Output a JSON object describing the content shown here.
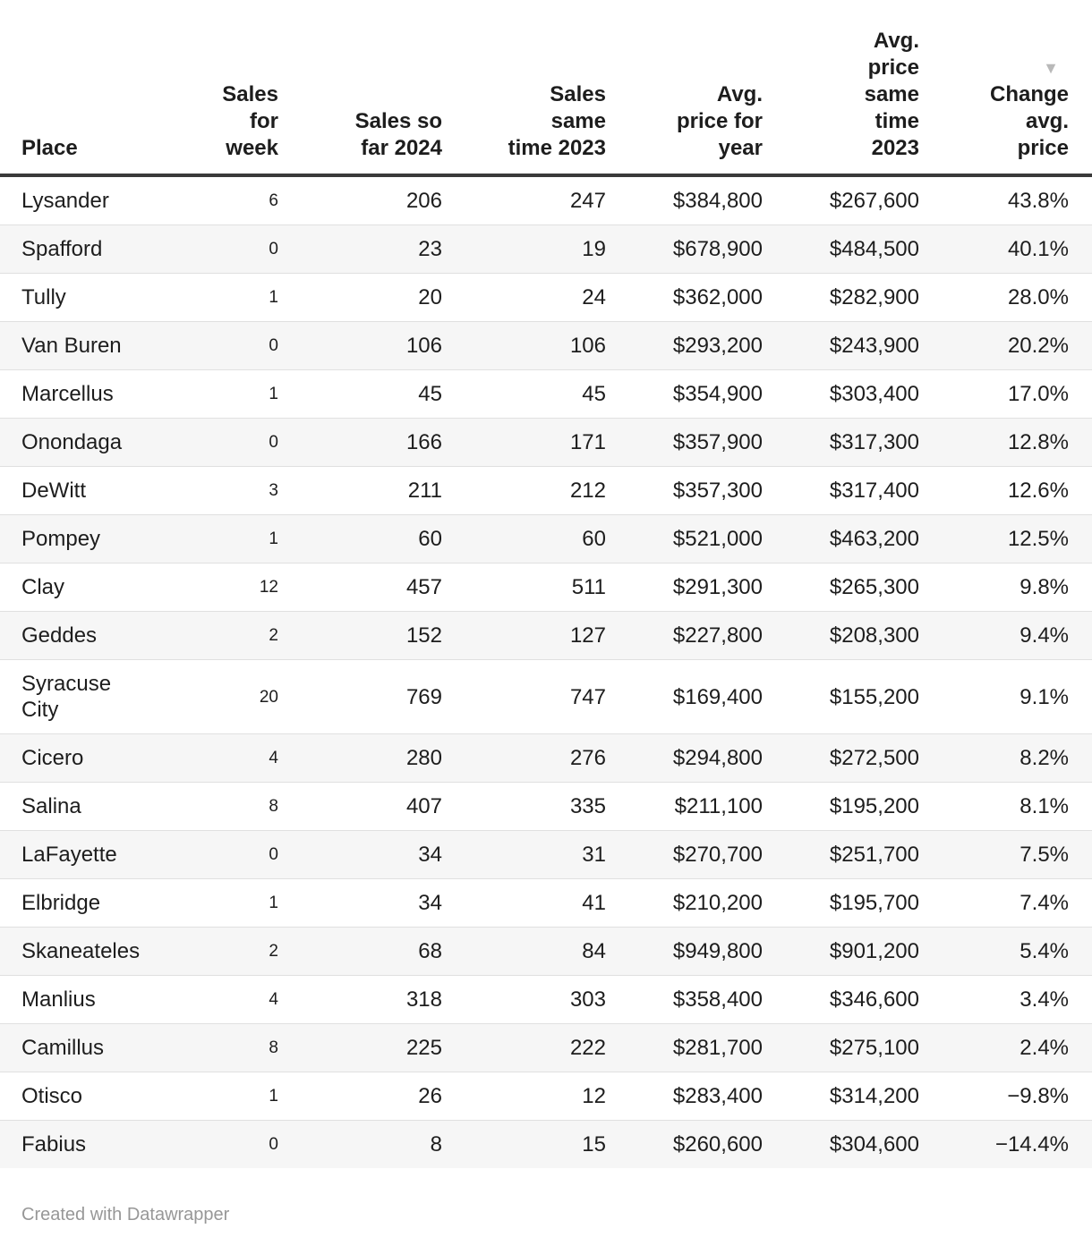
{
  "chart_data": {
    "type": "table",
    "columns": [
      {
        "name": "Place",
        "label": "Place"
      },
      {
        "name": "Sales for week",
        "label": "Sales\nfor\nweek"
      },
      {
        "name": "Sales so far 2024",
        "label": "Sales so\nfar 2024"
      },
      {
        "name": "Sales same time 2023",
        "label": "Sales\nsame\ntime 2023"
      },
      {
        "name": "Avg. price for year",
        "label": "Avg.\nprice for\nyear"
      },
      {
        "name": "Avg. price same time 2023",
        "label": "Avg.\nprice\nsame\ntime\n2023"
      },
      {
        "name": "Change avg. price",
        "label": "Change\navg.\nprice"
      }
    ],
    "sort": {
      "column": "Change avg. price",
      "direction": "desc",
      "indicator": "▼"
    },
    "rows": [
      [
        "Lysander",
        "6",
        "206",
        "247",
        "$384,800",
        "$267,600",
        "43.8%"
      ],
      [
        "Spafford",
        "0",
        "23",
        "19",
        "$678,900",
        "$484,500",
        "40.1%"
      ],
      [
        "Tully",
        "1",
        "20",
        "24",
        "$362,000",
        "$282,900",
        "28.0%"
      ],
      [
        "Van Buren",
        "0",
        "106",
        "106",
        "$293,200",
        "$243,900",
        "20.2%"
      ],
      [
        "Marcellus",
        "1",
        "45",
        "45",
        "$354,900",
        "$303,400",
        "17.0%"
      ],
      [
        "Onondaga",
        "0",
        "166",
        "171",
        "$357,900",
        "$317,300",
        "12.8%"
      ],
      [
        "DeWitt",
        "3",
        "211",
        "212",
        "$357,300",
        "$317,400",
        "12.6%"
      ],
      [
        "Pompey",
        "1",
        "60",
        "60",
        "$521,000",
        "$463,200",
        "12.5%"
      ],
      [
        "Clay",
        "12",
        "457",
        "511",
        "$291,300",
        "$265,300",
        "9.8%"
      ],
      [
        "Geddes",
        "2",
        "152",
        "127",
        "$227,800",
        "$208,300",
        "9.4%"
      ],
      [
        "Syracuse City",
        "20",
        "769",
        "747",
        "$169,400",
        "$155,200",
        "9.1%"
      ],
      [
        "Cicero",
        "4",
        "280",
        "276",
        "$294,800",
        "$272,500",
        "8.2%"
      ],
      [
        "Salina",
        "8",
        "407",
        "335",
        "$211,100",
        "$195,200",
        "8.1%"
      ],
      [
        "LaFayette",
        "0",
        "34",
        "31",
        "$270,700",
        "$251,700",
        "7.5%"
      ],
      [
        "Elbridge",
        "1",
        "34",
        "41",
        "$210,200",
        "$195,700",
        "7.4%"
      ],
      [
        "Skaneateles",
        "2",
        "68",
        "84",
        "$949,800",
        "$901,200",
        "5.4%"
      ],
      [
        "Manlius",
        "4",
        "318",
        "303",
        "$358,400",
        "$346,600",
        "3.4%"
      ],
      [
        "Camillus",
        "8",
        "225",
        "222",
        "$281,700",
        "$275,100",
        "2.4%"
      ],
      [
        "Otisco",
        "1",
        "26",
        "12",
        "$283,400",
        "$314,200",
        "−9.8%"
      ],
      [
        "Fabius",
        "0",
        "8",
        "15",
        "$260,600",
        "$304,600",
        "−14.4%"
      ]
    ]
  },
  "footer": {
    "attribution": "Created with Datawrapper"
  },
  "colors": {
    "text": "#1d1d1d",
    "header_rule": "#3a3a3a",
    "row_stripe": "#f6f6f6",
    "row_divider": "#e0e0e0",
    "sort_arrow": "#b9b9b9",
    "footer_text": "#979797"
  }
}
